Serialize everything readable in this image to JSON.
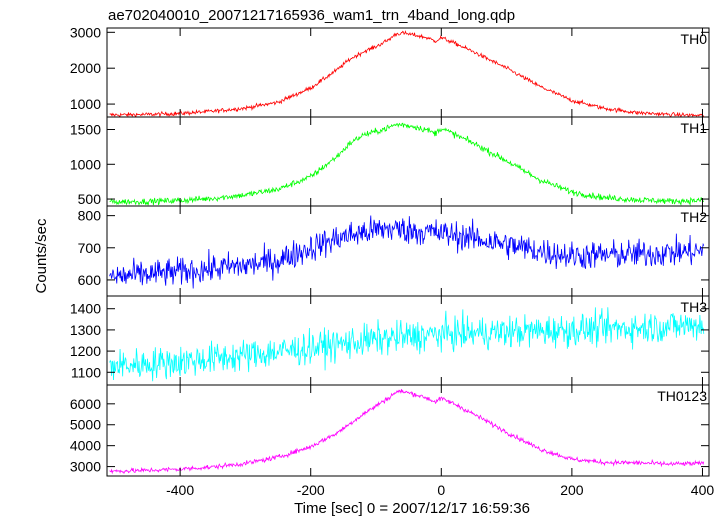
{
  "chart_data": {
    "type": "line",
    "title": "ae702040010_20071217165936_wam1_trn_4band_long.qdp",
    "xlabel": "Time [sec] 0 = 2007/12/17 16:59:36",
    "ylabel": "Counts/sec",
    "xlim": [
      -512,
      410
    ],
    "x_ticks": [
      -400,
      -200,
      0,
      200,
      400
    ],
    "grid": false,
    "panels": [
      {
        "name": "TH0",
        "color": "#ff0000",
        "ylim": [
          640,
          3120
        ],
        "y_ticks": [
          1000,
          2000,
          3000
        ],
        "noise": 28,
        "series": [
          {
            "name": "TH0",
            "x": [
              -500,
              -450,
              -400,
              -350,
              -300,
              -250,
              -200,
              -160,
              -140,
              -120,
              -100,
              -80,
              -70,
              -60,
              -40,
              -20,
              -10,
              0,
              20,
              50,
              100,
              150,
              200,
              250,
              300,
              350,
              400
            ],
            "y": [
              700,
              710,
              740,
              800,
              890,
              1050,
              1450,
              1950,
              2250,
              2450,
              2600,
              2800,
              2950,
              2980,
              2920,
              2840,
              2750,
              2850,
              2700,
              2450,
              2000,
              1500,
              1100,
              880,
              760,
              710,
              680
            ]
          }
        ]
      },
      {
        "name": "TH1",
        "color": "#00ff00",
        "ylim": [
          400,
          1680
        ],
        "y_ticks": [
          500,
          1000,
          1500
        ],
        "noise": 22,
        "series": [
          {
            "name": "TH1",
            "x": [
              -500,
              -450,
              -400,
              -350,
              -300,
              -250,
              -200,
              -160,
              -140,
              -120,
              -100,
              -80,
              -70,
              -60,
              -40,
              -20,
              -10,
              0,
              20,
              50,
              100,
              150,
              200,
              250,
              300,
              350,
              400
            ],
            "y": [
              460,
              465,
              480,
              510,
              560,
              640,
              820,
              1110,
              1300,
              1420,
              1470,
              1530,
              1570,
              1570,
              1540,
              1490,
              1440,
              1520,
              1430,
              1300,
              1050,
              780,
              600,
              520,
              490,
              470,
              480
            ]
          }
        ]
      },
      {
        "name": "TH2",
        "color": "#0000ff",
        "ylim": [
          550,
          830
        ],
        "y_ticks": [
          600,
          700,
          800
        ],
        "noise": 22,
        "series": [
          {
            "name": "TH2",
            "x": [
              -500,
              -400,
              -300,
              -250,
              -200,
              -150,
              -100,
              -80,
              -50,
              0,
              50,
              100,
              150,
              200,
              300,
              400
            ],
            "y": [
              610,
              625,
              645,
              660,
              700,
              735,
              755,
              760,
              755,
              745,
              730,
              710,
              690,
              675,
              680,
              690
            ]
          }
        ]
      },
      {
        "name": "TH3",
        "color": "#00ffff",
        "ylim": [
          1040,
          1460
        ],
        "y_ticks": [
          1100,
          1200,
          1300,
          1400
        ],
        "noise": 38,
        "series": [
          {
            "name": "TH3",
            "x": [
              -500,
              -400,
              -300,
              -200,
              -100,
              0,
              100,
              200,
              300,
              400
            ],
            "y": [
              1130,
              1150,
              1180,
              1215,
              1255,
              1280,
              1290,
              1300,
              1310,
              1325
            ]
          }
        ]
      },
      {
        "name": "TH0123",
        "color": "#ff00ff",
        "ylim": [
          2550,
          6900
        ],
        "y_ticks": [
          3000,
          4000,
          5000,
          6000
        ],
        "noise": 55,
        "series": [
          {
            "name": "TH0123",
            "x": [
              -500,
              -450,
              -400,
              -350,
              -300,
              -250,
              -200,
              -160,
              -140,
              -120,
              -100,
              -80,
              -70,
              -60,
              -40,
              -20,
              -10,
              0,
              20,
              50,
              100,
              150,
              200,
              250,
              300,
              350,
              400
            ],
            "y": [
              2780,
              2820,
              2880,
              2980,
              3150,
              3450,
              3950,
              4600,
              5050,
              5500,
              5900,
              6300,
              6550,
              6600,
              6450,
              6250,
              6100,
              6250,
              6000,
              5500,
              4650,
              3850,
              3350,
              3200,
              3180,
              3120,
              3150
            ]
          }
        ]
      }
    ]
  }
}
